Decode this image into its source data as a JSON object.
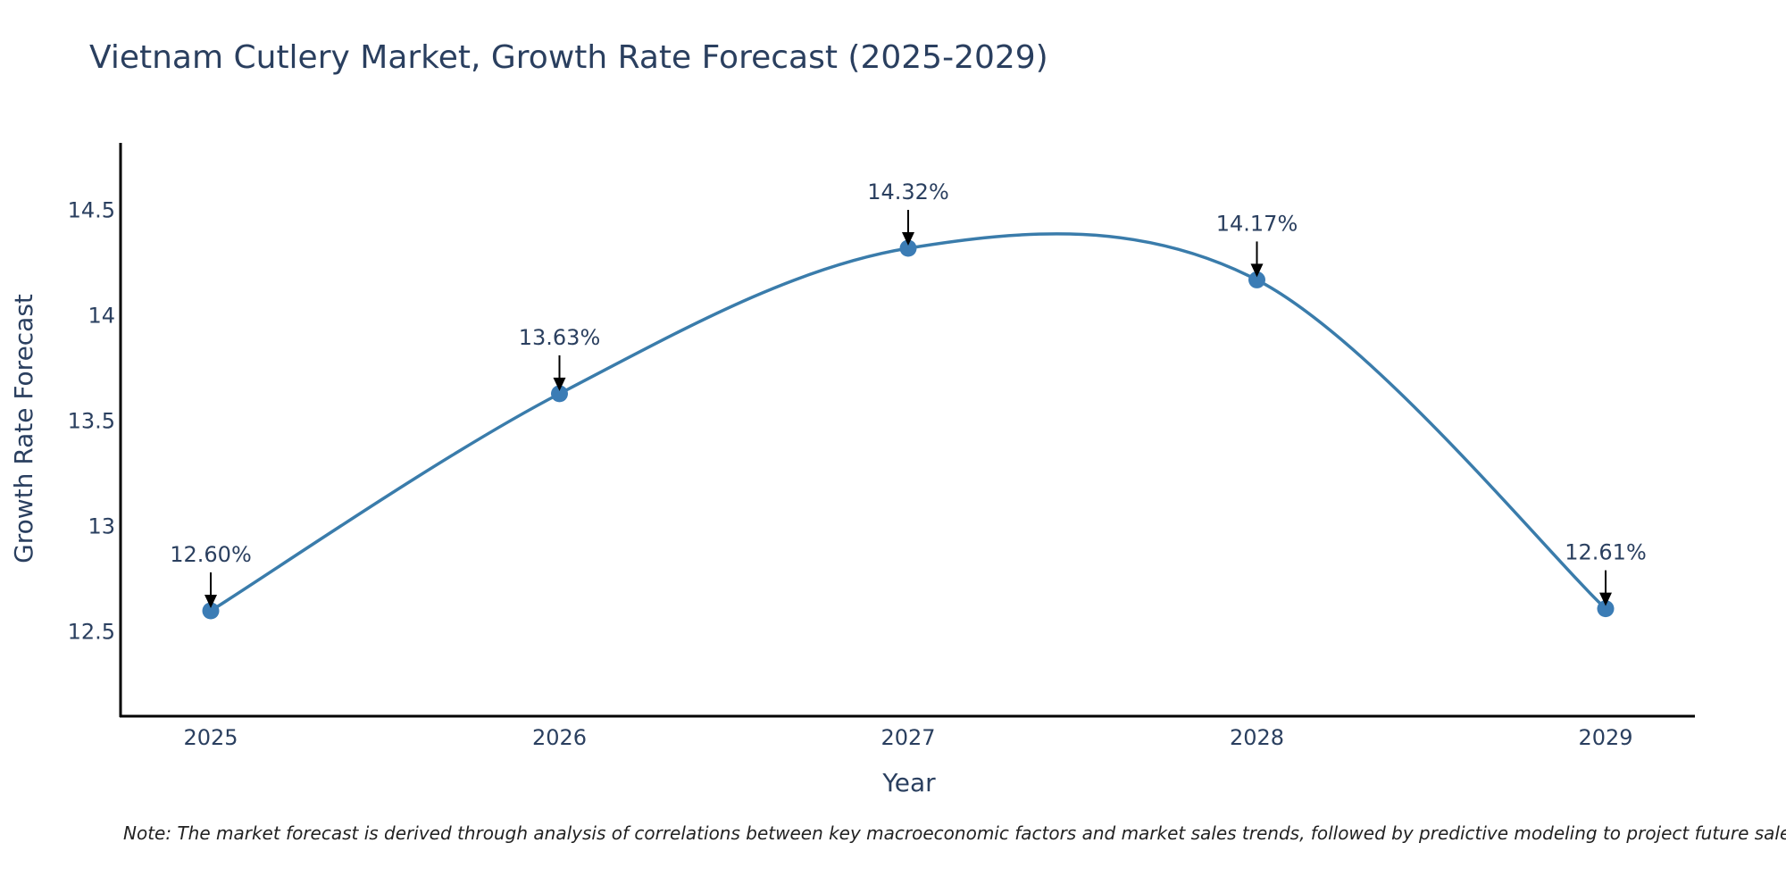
{
  "chart_data": {
    "type": "line",
    "title": "Vietnam Cutlery Market, Growth Rate Forecast (2025-2029)",
    "xlabel": "Year",
    "ylabel": "Growth Rate Forecast",
    "categories": [
      "2025",
      "2026",
      "2027",
      "2028",
      "2029"
    ],
    "values": [
      12.6,
      13.63,
      14.32,
      14.17,
      12.61
    ],
    "data_labels": [
      "12.60%",
      "13.63%",
      "14.32%",
      "14.17%",
      "12.61%"
    ],
    "yticks": [
      12.5,
      13,
      13.5,
      14,
      14.5
    ],
    "ytick_labels": [
      "12.5",
      "13",
      "13.5",
      "14",
      "14.5"
    ],
    "ylim": [
      12.1,
      14.82
    ],
    "line_shape": "spline",
    "grid": false,
    "line_color": "#3a7cab",
    "marker_color": "#3b7cb5",
    "note": "Note: The market forecast is derived through analysis of correlations between key macroeconomic factors and market sales trends, followed by predictive modeling to project future sales."
  }
}
